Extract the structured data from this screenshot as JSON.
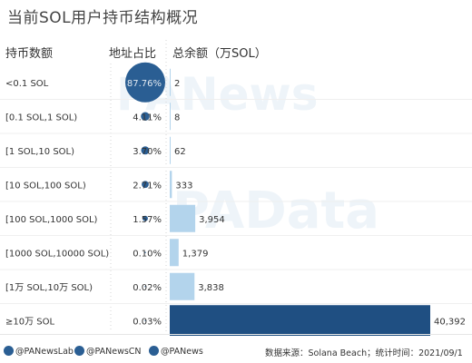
{
  "title": "当前SOL用户持币结构概况",
  "headers": {
    "holding": "持币数额",
    "address_share": "地址占比",
    "total_balance": "总余额（万SOL）"
  },
  "watermarks": [
    "PANews",
    "PAData"
  ],
  "chart_data": {
    "type": "bar",
    "title": "当前SOL用户持币结构概况",
    "categories": [
      "<0.1 SOL",
      "[0.1 SOL,1 SOL)",
      "[1 SOL,10 SOL)",
      "[10 SOL,100 SOL)",
      "[100 SOL,1000 SOL)",
      "[1000 SOL,10000 SOL)",
      "[1万 SOL,10万 SOL)",
      "≥10万 SOL"
    ],
    "address_share_percent": [
      87.76,
      4.11,
      3.7,
      2.71,
      1.57,
      0.1,
      0.02,
      0.03
    ],
    "address_share_labels": [
      "87.76%",
      "4.11%",
      "3.70%",
      "2.71%",
      "1.57%",
      "0.10%",
      "0.02%",
      "0.03%"
    ],
    "total_balance_wan_sol": [
      2,
      8,
      62,
      333,
      3954,
      1379,
      3838,
      40392
    ],
    "total_balance_labels": [
      "2",
      "8",
      "62",
      "333",
      "3,954",
      "1,379",
      "3,838",
      "40,392"
    ],
    "colors": {
      "bubble": "#2a5e93",
      "bar_light": "#b3d4ec",
      "bar_dark": "#1f4f82"
    }
  },
  "footer": {
    "twitter_lab": "@PANewsLab",
    "twitter_cn": "@PANewsCN",
    "weibo": "@PANews",
    "source": "数据来源：Solana Beach；统计时间：2021/09/1"
  }
}
